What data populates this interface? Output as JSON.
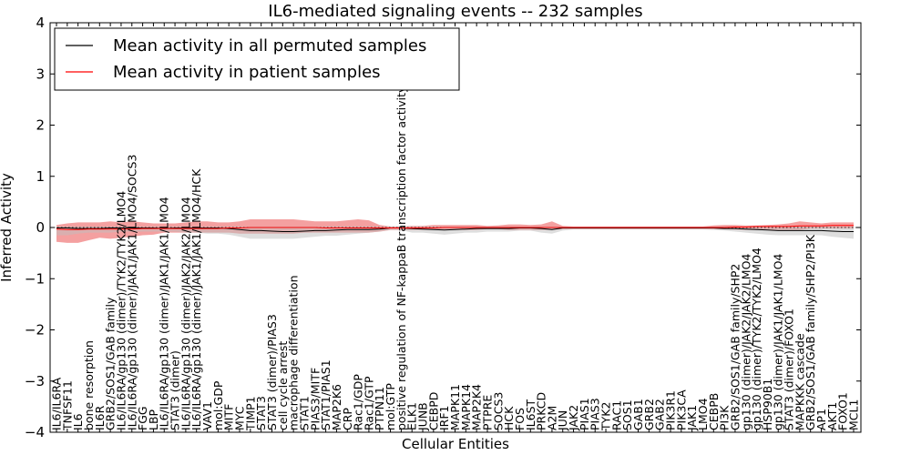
{
  "chart_data": {
    "type": "line",
    "title": "IL6-mediated signaling events -- 232 samples",
    "xlabel": "Cellular Entities",
    "ylabel": "Inferred Activity",
    "ylim": [
      -4,
      4
    ],
    "yticks": [
      -4,
      -3,
      -2,
      -1,
      0,
      1,
      2,
      3,
      4
    ],
    "ytick_labels": [
      "−4",
      "−3",
      "−2",
      "−1",
      "0",
      "1",
      "2",
      "3",
      "4"
    ],
    "grid": false,
    "legend_position": "top-left",
    "categories": [
      "IL6/IL6RA",
      "TNFSF11",
      "IL6",
      "bone resorption",
      "IL6R",
      "GRB2/SOS1/GAB family",
      "IL6/IL6RA/gp130 (dimer)/TYK2/TYK2/LMO4",
      "IL6/IL6RA/gp130 (dimer)/JAK1/JAK1/LMO4/SOCS3",
      "FGG",
      "LBP",
      "IL6/IL6RA/gp130 (dimer)/JAK1/JAK1/LMO4",
      "STAT3 (dimer)",
      "IL6/IL6RA/gp130 (dimer)/JAK2/JAK2/LMO4",
      "IL6/IL6RA/gp130 (dimer)/JAK1/JAK1/LMO4/HCK",
      "VAV1",
      "mol:GDP",
      "MITF",
      "MYC",
      "TIMP1",
      "STAT3",
      "STAT3 (dimer)/PIAS3",
      "cell cycle arrest",
      "macrophage differentiation",
      "STAT1",
      "PIAS3/MITF",
      "STAT1/PIAS1",
      "MAP2K6",
      "CRP",
      "Rac1/GDP",
      "Rac1/GTP",
      "PTPN11",
      "mol:GTP",
      "positive regulation of NF-kappaB transcription factor activity",
      "ELK1",
      "JUNB",
      "CEBPD",
      "IRF1",
      "MAPK11",
      "MAPK14",
      "MAP2K4",
      "PTPRE",
      "SOCS3",
      "HCK",
      "FOS",
      "IL6ST",
      "PRKCD",
      "A2M",
      "JUN",
      "JAK2",
      "PIAS1",
      "PIAS3",
      "TYK2",
      "RAC1",
      "SOS1",
      "GAB1",
      "GRB2",
      "GAB2",
      "PIK3R1",
      "PIK3CA",
      "JAK1",
      "LMO4",
      "CEBPB",
      "PI3K",
      "GRB2/SOS1/GAB family/SHP2",
      "gp130 (dimer)/JAK2/JAK2/LMO4",
      "gp130 (dimer)/TYK2/TYK2/LMO4",
      "HSP90B1",
      "gp130 (dimer)/JAK1/JAK1/LMO4",
      "STAT3 (dimer)/FOXO1",
      "MAPKKK cascade",
      "GRB2/SOS1/GAB family/SHP2/PI3K",
      "AP1",
      "AKT1",
      "FOXO1",
      "MCL1"
    ],
    "series": [
      {
        "name": "Mean activity in all permuted samples",
        "color": "#000000",
        "values": [
          -0.01,
          -0.01,
          -0.02,
          -0.02,
          -0.02,
          -0.01,
          -0.01,
          -0.01,
          -0.01,
          -0.01,
          -0.02,
          -0.01,
          -0.01,
          -0.01,
          -0.01,
          -0.01,
          -0.02,
          -0.04,
          -0.06,
          -0.06,
          -0.07,
          -0.08,
          -0.08,
          -0.07,
          -0.06,
          -0.06,
          -0.05,
          -0.04,
          -0.04,
          -0.04,
          -0.03,
          -0.01,
          -0.01,
          -0.02,
          -0.03,
          -0.04,
          -0.05,
          -0.04,
          -0.03,
          -0.02,
          -0.02,
          -0.02,
          -0.02,
          -0.01,
          -0.01,
          -0.02,
          -0.04,
          -0.01,
          -0.01,
          -0.01,
          -0.01,
          -0.01,
          -0.01,
          -0.01,
          -0.01,
          -0.01,
          -0.01,
          -0.01,
          -0.01,
          -0.01,
          -0.01,
          -0.01,
          -0.02,
          -0.02,
          -0.03,
          -0.04,
          -0.05,
          -0.06,
          -0.06,
          -0.06,
          -0.06,
          -0.06,
          -0.07,
          -0.08,
          -0.08
        ]
      },
      {
        "name": "Mean activity in patient samples",
        "color": "#ff0000",
        "values": [
          -0.03,
          -0.04,
          -0.04,
          -0.03,
          -0.03,
          -0.03,
          -0.03,
          -0.03,
          -0.02,
          -0.02,
          -0.02,
          -0.02,
          -0.02,
          -0.02,
          -0.02,
          -0.02,
          -0.01,
          -0.01,
          0.0,
          0.0,
          0.0,
          0.0,
          0.0,
          0.0,
          0.0,
          -0.01,
          -0.01,
          -0.01,
          -0.01,
          -0.01,
          -0.01,
          -0.01,
          -0.01,
          -0.01,
          -0.01,
          -0.01,
          0.0,
          0.0,
          0.0,
          0.0,
          0.0,
          0.0,
          0.0,
          0.0,
          0.0,
          0.0,
          0.0,
          0.0,
          0.0,
          0.0,
          0.0,
          0.0,
          0.0,
          0.0,
          0.0,
          0.0,
          0.0,
          0.0,
          0.0,
          0.0,
          0.0,
          0.0,
          0.0,
          0.01,
          0.01,
          0.02,
          0.02,
          0.02,
          0.02,
          0.03,
          0.03,
          0.03,
          0.04,
          0.04,
          0.04
        ]
      }
    ],
    "bands": [
      {
        "name": "patient samples range",
        "color": "#f08080",
        "lower": [
          -0.28,
          -0.3,
          -0.3,
          -0.25,
          -0.2,
          -0.22,
          -0.2,
          -0.18,
          -0.15,
          -0.14,
          -0.1,
          -0.1,
          -0.1,
          -0.1,
          -0.1,
          -0.1,
          -0.1,
          -0.12,
          -0.12,
          -0.12,
          -0.12,
          -0.12,
          -0.12,
          -0.1,
          -0.1,
          -0.1,
          -0.1,
          -0.1,
          -0.1,
          -0.1,
          -0.08,
          -0.05,
          -0.05,
          -0.05,
          -0.05,
          -0.05,
          -0.05,
          -0.05,
          -0.05,
          -0.05,
          -0.03,
          -0.03,
          -0.05,
          -0.05,
          -0.05,
          -0.05,
          -0.05,
          -0.03,
          -0.03,
          -0.03,
          -0.03,
          -0.03,
          -0.03,
          -0.03,
          -0.03,
          -0.03,
          -0.03,
          -0.03,
          -0.03,
          -0.03,
          -0.03,
          -0.03,
          -0.03,
          -0.04,
          -0.05,
          -0.05,
          -0.05,
          -0.05,
          -0.05,
          -0.05,
          -0.02,
          -0.02,
          -0.02,
          -0.02,
          -0.02
        ],
        "upper": [
          0.05,
          0.08,
          0.1,
          0.1,
          0.1,
          0.12,
          0.1,
          0.12,
          0.1,
          0.08,
          0.08,
          0.08,
          0.1,
          0.12,
          0.12,
          0.1,
          0.1,
          0.12,
          0.16,
          0.16,
          0.16,
          0.16,
          0.16,
          0.14,
          0.12,
          0.12,
          0.12,
          0.14,
          0.16,
          0.14,
          0.05,
          0.02,
          0.02,
          0.03,
          0.03,
          0.05,
          0.05,
          0.05,
          0.05,
          0.05,
          0.03,
          0.04,
          0.06,
          0.06,
          0.05,
          0.06,
          0.12,
          0.03,
          0.02,
          0.02,
          0.02,
          0.02,
          0.02,
          0.02,
          0.02,
          0.02,
          0.02,
          0.02,
          0.02,
          0.02,
          0.02,
          0.04,
          0.05,
          0.05,
          0.04,
          0.04,
          0.05,
          0.06,
          0.08,
          0.12,
          0.1,
          0.08,
          0.1,
          0.1,
          0.1
        ]
      },
      {
        "name": "permuted samples range",
        "color": "#bdbdbd",
        "lower": [
          -0.15,
          -0.15,
          -0.12,
          -0.1,
          -0.1,
          -0.1,
          -0.08,
          -0.08,
          -0.08,
          -0.08,
          -0.08,
          -0.08,
          -0.1,
          -0.1,
          -0.12,
          -0.12,
          -0.14,
          -0.18,
          -0.22,
          -0.22,
          -0.22,
          -0.22,
          -0.22,
          -0.2,
          -0.18,
          -0.16,
          -0.16,
          -0.14,
          -0.12,
          -0.1,
          -0.08,
          -0.05,
          -0.05,
          -0.1,
          -0.1,
          -0.12,
          -0.14,
          -0.12,
          -0.1,
          -0.1,
          -0.08,
          -0.08,
          -0.08,
          -0.06,
          -0.06,
          -0.1,
          -0.12,
          -0.06,
          -0.04,
          -0.04,
          -0.04,
          -0.04,
          -0.04,
          -0.04,
          -0.04,
          -0.04,
          -0.04,
          -0.04,
          -0.04,
          -0.04,
          -0.04,
          -0.05,
          -0.06,
          -0.08,
          -0.1,
          -0.12,
          -0.14,
          -0.15,
          -0.15,
          -0.15,
          -0.15,
          -0.15,
          -0.18,
          -0.2,
          -0.22
        ],
        "upper": [
          0.02,
          0.02,
          0.02,
          0.02,
          0.02,
          0.02,
          0.02,
          0.02,
          0.02,
          0.02,
          0.02,
          0.02,
          0.02,
          0.02,
          0.02,
          0.02,
          0.02,
          0.02,
          0.02,
          0.02,
          0.02,
          0.02,
          0.02,
          0.02,
          0.02,
          0.02,
          0.02,
          0.02,
          0.02,
          0.02,
          0.02,
          0.02,
          0.02,
          0.02,
          0.02,
          0.02,
          0.02,
          0.02,
          0.02,
          0.02,
          0.02,
          0.02,
          0.02,
          0.02,
          0.02,
          0.02,
          0.02,
          0.02,
          0.02,
          0.02,
          0.02,
          0.02,
          0.02,
          0.02,
          0.02,
          0.02,
          0.02,
          0.02,
          0.02,
          0.02,
          0.02,
          0.02,
          0.02,
          0.02,
          0.02,
          0.02,
          0.02,
          0.02,
          0.02,
          0.02,
          0.02,
          0.02,
          0.02,
          0.02,
          0.02
        ]
      }
    ]
  }
}
